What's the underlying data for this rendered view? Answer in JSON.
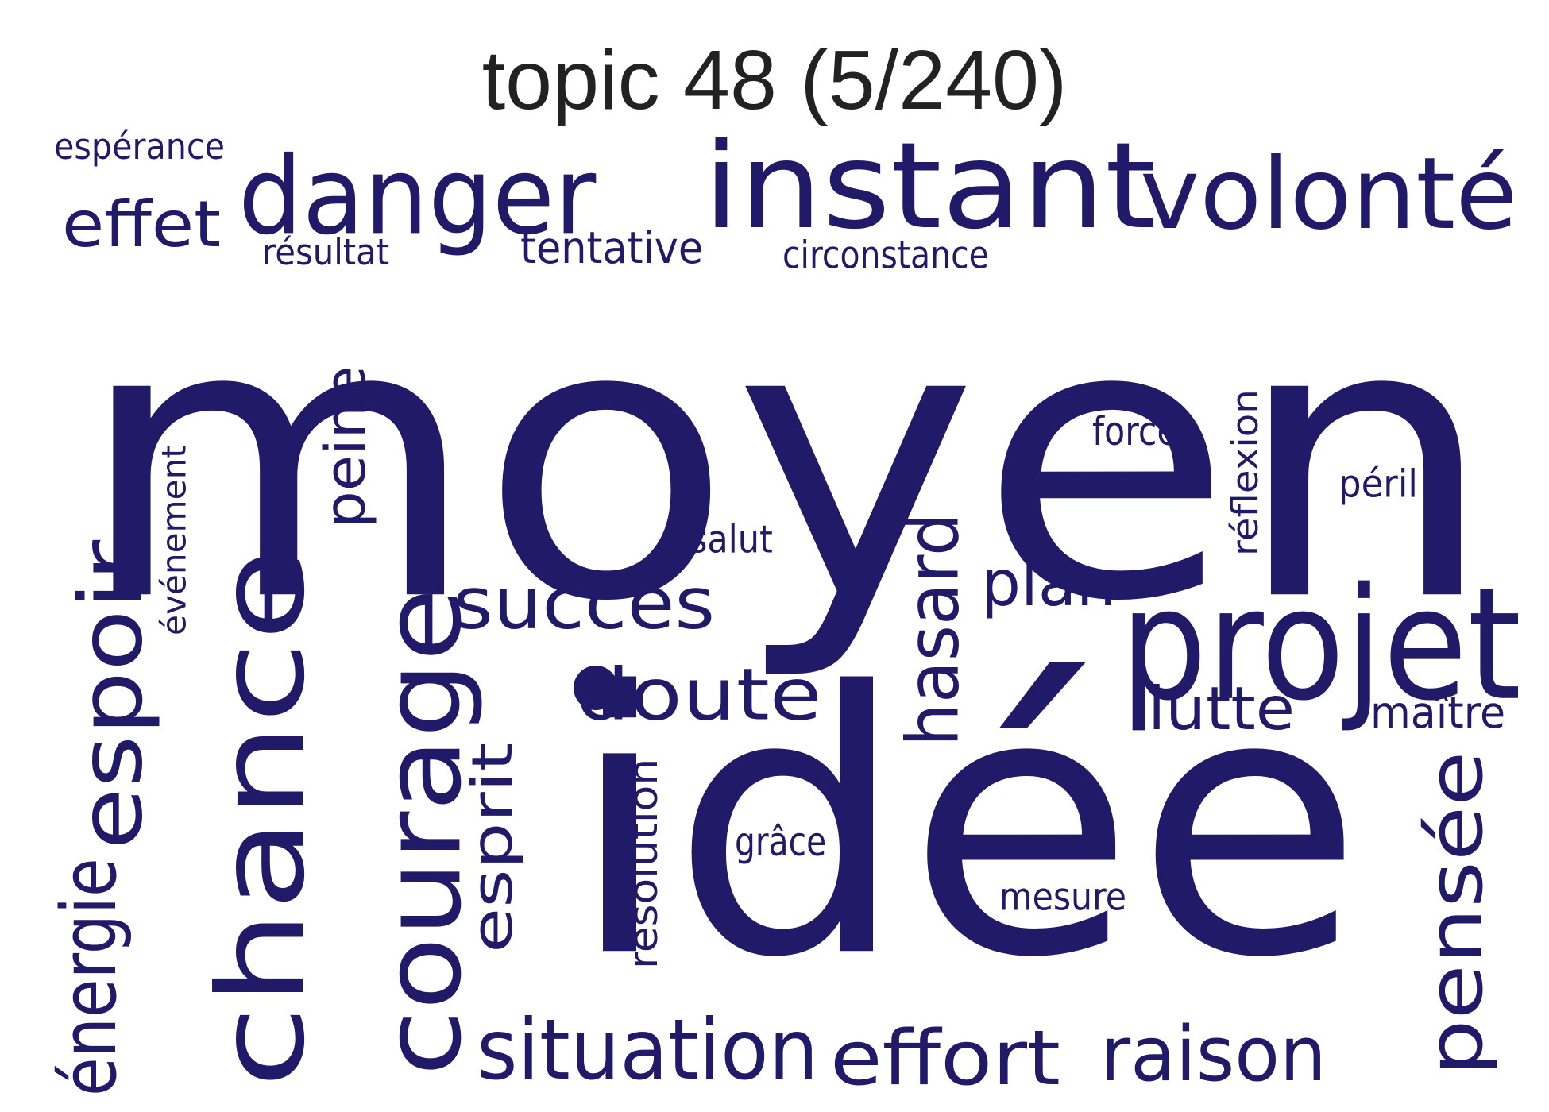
{
  "title": "topic 48 (5/240)",
  "colors": {
    "word": "#211a68",
    "title": "#222222",
    "background": "#ffffff"
  },
  "words": [
    {
      "text": "moyen",
      "weight": 1.0,
      "orientation": "horizontal"
    },
    {
      "text": "idée",
      "weight": 0.82,
      "orientation": "horizontal"
    },
    {
      "text": "instant",
      "weight": 0.36,
      "orientation": "horizontal"
    },
    {
      "text": "chance",
      "weight": 0.35,
      "orientation": "vertical"
    },
    {
      "text": "projet",
      "weight": 0.3,
      "orientation": "horizontal"
    },
    {
      "text": "volonté",
      "weight": 0.26,
      "orientation": "horizontal"
    },
    {
      "text": "courage",
      "weight": 0.26,
      "orientation": "vertical"
    },
    {
      "text": "danger",
      "weight": 0.24,
      "orientation": "horizontal"
    },
    {
      "text": "espoir",
      "weight": 0.22,
      "orientation": "vertical"
    },
    {
      "text": "pensée",
      "weight": 0.2,
      "orientation": "vertical"
    },
    {
      "text": "situation",
      "weight": 0.18,
      "orientation": "horizontal"
    },
    {
      "text": "effort",
      "weight": 0.18,
      "orientation": "horizontal"
    },
    {
      "text": "raison",
      "weight": 0.17,
      "orientation": "horizontal"
    },
    {
      "text": "succès",
      "weight": 0.17,
      "orientation": "horizontal"
    },
    {
      "text": "hasard",
      "weight": 0.16,
      "orientation": "vertical"
    },
    {
      "text": "esprit",
      "weight": 0.15,
      "orientation": "vertical"
    },
    {
      "text": "doute",
      "weight": 0.14,
      "orientation": "horizontal"
    },
    {
      "text": "énergie",
      "weight": 0.14,
      "orientation": "vertical"
    },
    {
      "text": "effet",
      "weight": 0.13,
      "orientation": "horizontal"
    },
    {
      "text": "peine",
      "weight": 0.13,
      "orientation": "vertical"
    },
    {
      "text": "plan",
      "weight": 0.13,
      "orientation": "horizontal"
    },
    {
      "text": "lutte",
      "weight": 0.13,
      "orientation": "horizontal"
    },
    {
      "text": "résolution",
      "weight": 0.08,
      "orientation": "vertical"
    },
    {
      "text": "réflexion",
      "weight": 0.08,
      "orientation": "vertical"
    },
    {
      "text": "événement",
      "weight": 0.07,
      "orientation": "vertical"
    },
    {
      "text": "tentative",
      "weight": 0.07,
      "orientation": "horizontal"
    },
    {
      "text": "maître",
      "weight": 0.07,
      "orientation": "horizontal"
    },
    {
      "text": "forces",
      "weight": 0.07,
      "orientation": "horizontal"
    },
    {
      "text": "circonstance",
      "weight": 0.06,
      "orientation": "horizontal"
    },
    {
      "text": "résultat",
      "weight": 0.06,
      "orientation": "horizontal"
    },
    {
      "text": "espérance",
      "weight": 0.06,
      "orientation": "horizontal"
    },
    {
      "text": "grâce",
      "weight": 0.06,
      "orientation": "horizontal"
    },
    {
      "text": "mesure",
      "weight": 0.06,
      "orientation": "horizontal"
    },
    {
      "text": "salut",
      "weight": 0.06,
      "orientation": "horizontal"
    },
    {
      "text": "péril",
      "weight": 0.06,
      "orientation": "horizontal"
    }
  ]
}
